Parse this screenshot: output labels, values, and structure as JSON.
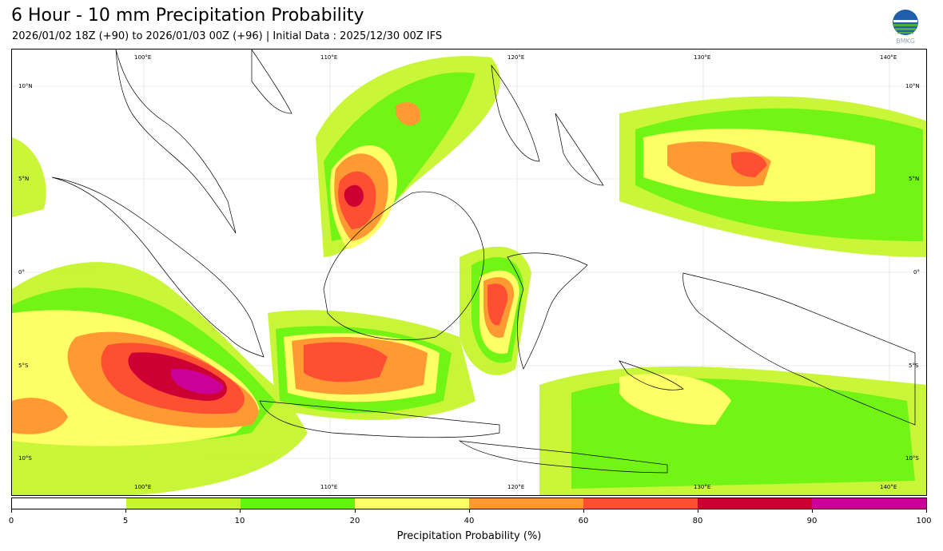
{
  "header": {
    "title": "6 Hour - 10 mm Precipitation Probability",
    "subtitle": "2026/01/02 18Z (+90) to 2026/01/03 00Z (+96) | Initial Data : 2025/12/30 00Z IFS"
  },
  "logo": {
    "label": "BMKG",
    "icon": "bmkg-logo-icon"
  },
  "map": {
    "lon_labels": [
      "100°E",
      "110°E",
      "120°E",
      "130°E",
      "140°E"
    ],
    "lat_labels": [
      "10°N",
      "5°N",
      "0°",
      "5°S",
      "10°S"
    ]
  },
  "colorbar": {
    "label": "Precipitation Probability (%)",
    "ticks": [
      "0",
      "5",
      "10",
      "20",
      "40",
      "60",
      "80",
      "90",
      "100"
    ],
    "colors": [
      "#ffffff",
      "#c6f52e",
      "#63f50e",
      "#ffff66",
      "#ff9a33",
      "#ff4f33",
      "#cc0033",
      "#cc0099"
    ]
  }
}
